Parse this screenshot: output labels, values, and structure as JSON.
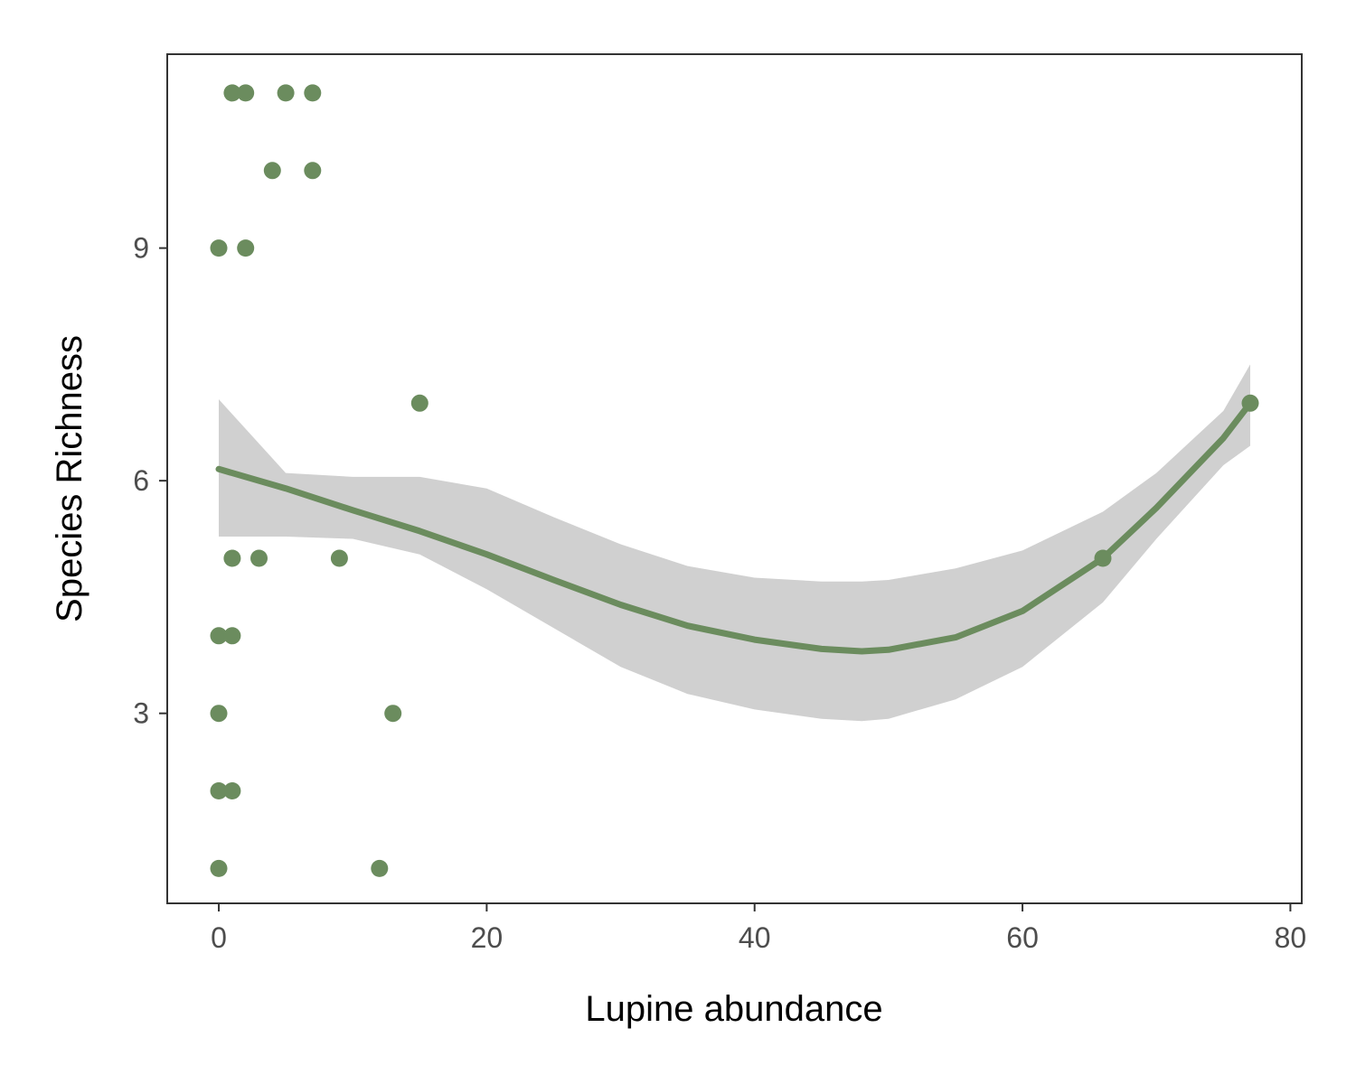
{
  "chart_data": {
    "type": "scatter",
    "title": "",
    "xlabel": "Lupine abundance",
    "ylabel": "Species Richness",
    "xlim": [
      -3.85,
      80.85
    ],
    "ylim": [
      0.55,
      11.5
    ],
    "xticks": [
      0,
      20,
      40,
      60,
      80
    ],
    "xtick_labels": [
      "0",
      "20",
      "40",
      "60",
      "80"
    ],
    "yticks": [
      3,
      6,
      9
    ],
    "ytick_labels": [
      "3",
      "6",
      "9"
    ],
    "grid": false,
    "legend": "none",
    "point_color": "#6b8c5e",
    "line_color": "#6b8c5e",
    "band_color": "#d0d0d0",
    "points": [
      {
        "x": 1,
        "y": 11
      },
      {
        "x": 2,
        "y": 11
      },
      {
        "x": 5,
        "y": 11
      },
      {
        "x": 7,
        "y": 11
      },
      {
        "x": 4,
        "y": 10
      },
      {
        "x": 7,
        "y": 10
      },
      {
        "x": 0,
        "y": 9
      },
      {
        "x": 2,
        "y": 9
      },
      {
        "x": 15,
        "y": 7
      },
      {
        "x": 77,
        "y": 7
      },
      {
        "x": 1,
        "y": 5
      },
      {
        "x": 3,
        "y": 5
      },
      {
        "x": 9,
        "y": 5
      },
      {
        "x": 66,
        "y": 5
      },
      {
        "x": 0,
        "y": 4
      },
      {
        "x": 1,
        "y": 4
      },
      {
        "x": 0,
        "y": 3
      },
      {
        "x": 13,
        "y": 3
      },
      {
        "x": 0,
        "y": 2
      },
      {
        "x": 1,
        "y": 2
      },
      {
        "x": 0,
        "y": 1
      },
      {
        "x": 12,
        "y": 1
      }
    ],
    "smooth": {
      "x": [
        0,
        5,
        10,
        15,
        20,
        25,
        30,
        35,
        40,
        45,
        48,
        50,
        55,
        60,
        66,
        70,
        75,
        77
      ],
      "y": [
        6.15,
        5.9,
        5.62,
        5.35,
        5.05,
        4.72,
        4.4,
        4.13,
        3.95,
        3.83,
        3.8,
        3.82,
        3.98,
        4.32,
        5.0,
        5.65,
        6.55,
        7.0
      ],
      "lower": [
        5.28,
        5.28,
        5.25,
        5.05,
        4.6,
        4.1,
        3.6,
        3.25,
        3.05,
        2.93,
        2.9,
        2.93,
        3.18,
        3.6,
        4.43,
        5.25,
        6.2,
        6.45
      ],
      "upper": [
        7.05,
        6.1,
        6.05,
        6.05,
        5.9,
        5.53,
        5.18,
        4.9,
        4.75,
        4.7,
        4.7,
        4.72,
        4.87,
        5.1,
        5.6,
        6.1,
        6.9,
        7.5
      ]
    }
  }
}
